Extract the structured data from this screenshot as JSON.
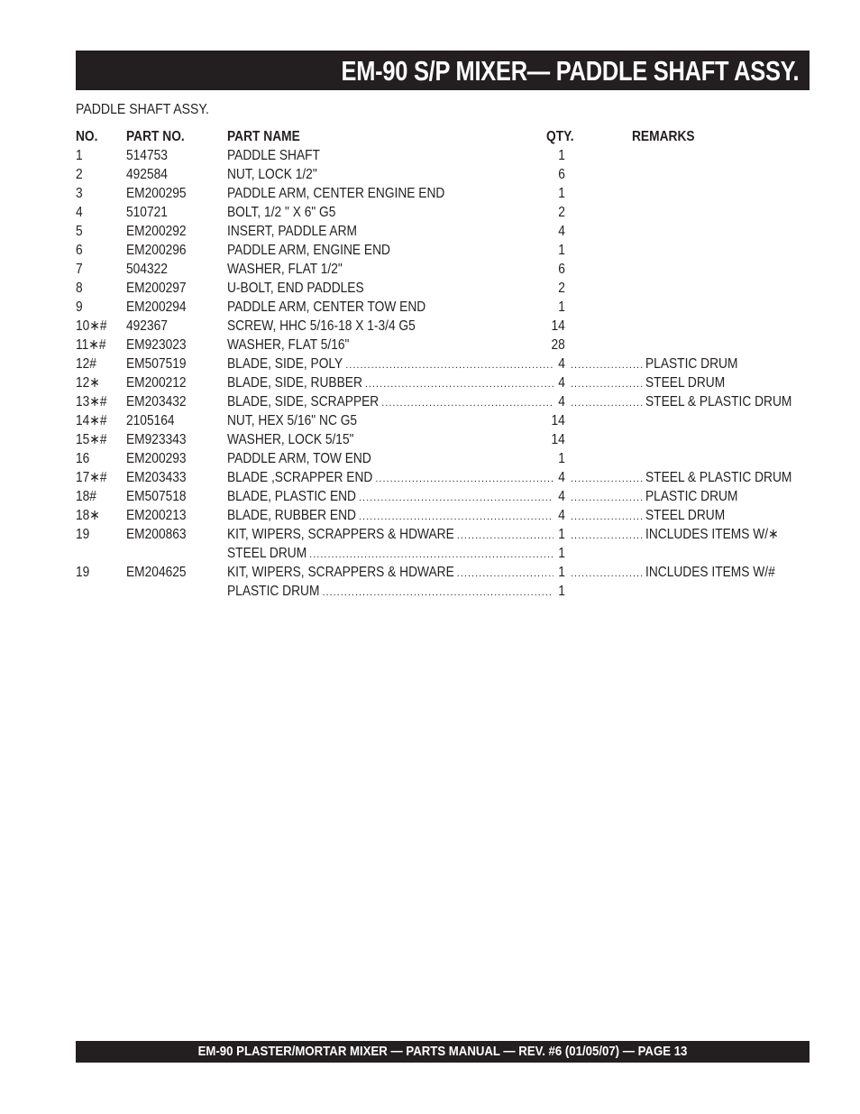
{
  "header": {
    "title": "EM-90 S/P MIXER— PADDLE SHAFT ASSY."
  },
  "section_title": "PADDLE SHAFT ASSY.",
  "table": {
    "columns": {
      "no": "NO.",
      "part_no": "PART NO.",
      "part_name": "PART NAME",
      "qty": "QTY.",
      "remarks": "REMARKS"
    },
    "rows": [
      {
        "no": "1",
        "part_no": "514753",
        "part_name": "PADDLE SHAFT",
        "qty": "1",
        "remarks": ""
      },
      {
        "no": "2",
        "part_no": "492584",
        "part_name": "NUT, LOCK 1/2\"",
        "qty": "6",
        "remarks": ""
      },
      {
        "no": "3",
        "part_no": "EM200295",
        "part_name": "PADDLE ARM, CENTER ENGINE END",
        "qty": "1",
        "remarks": ""
      },
      {
        "no": "4",
        "part_no": "510721",
        "part_name": "BOLT, 1/2 \" X 6\" G5",
        "qty": "2",
        "remarks": ""
      },
      {
        "no": "5",
        "part_no": "EM200292",
        "part_name": "INSERT, PADDLE ARM",
        "qty": "4",
        "remarks": ""
      },
      {
        "no": "6",
        "part_no": "EM200296",
        "part_name": "PADDLE ARM, ENGINE END",
        "qty": "1",
        "remarks": ""
      },
      {
        "no": "7",
        "part_no": "504322",
        "part_name": "WASHER, FLAT 1/2\"",
        "qty": "6",
        "remarks": ""
      },
      {
        "no": "8",
        "part_no": "EM200297",
        "part_name": "U-BOLT, END PADDLES",
        "qty": "2",
        "remarks": ""
      },
      {
        "no": "9",
        "part_no": "EM200294",
        "part_name": "PADDLE ARM, CENTER TOW END",
        "qty": "1",
        "remarks": ""
      },
      {
        "no": "10∗#",
        "part_no": "492367",
        "part_name": "SCREW, HHC 5/16-18 X 1-3/4 G5",
        "qty": "14",
        "remarks": ""
      },
      {
        "no": "11∗#",
        "part_no": "EM923023",
        "part_name": "WASHER, FLAT 5/16\"",
        "qty": "28",
        "remarks": ""
      },
      {
        "no": "12#",
        "part_no": "EM507519",
        "part_name": "BLADE, SIDE, POLY",
        "qty": "4",
        "remarks": "PLASTIC DRUM",
        "leader": true
      },
      {
        "no": "12∗",
        "part_no": "EM200212",
        "part_name": "BLADE, SIDE, RUBBER",
        "qty": "4",
        "remarks": "STEEL DRUM",
        "leader": true
      },
      {
        "no": "13∗#",
        "part_no": "EM203432",
        "part_name": "BLADE, SIDE, SCRAPPER",
        "qty": "4",
        "remarks": "STEEL & PLASTIC DRUM",
        "leader": true
      },
      {
        "no": "14∗#",
        "part_no": "2105164",
        "part_name": "NUT, HEX 5/16\" NC G5",
        "qty": "14",
        "remarks": ""
      },
      {
        "no": "15∗#",
        "part_no": "EM923343",
        "part_name": "WASHER, LOCK 5/15\"",
        "qty": "14",
        "remarks": ""
      },
      {
        "no": "16",
        "part_no": "EM200293",
        "part_name": "PADDLE ARM, TOW END",
        "qty": "1",
        "remarks": ""
      },
      {
        "no": "17∗#",
        "part_no": "EM203433",
        "part_name": "BLADE ,SCRAPPER END",
        "qty": "4",
        "remarks": "STEEL & PLASTIC DRUM",
        "leader": true
      },
      {
        "no": "18#",
        "part_no": "EM507518",
        "part_name": "BLADE, PLASTIC END",
        "qty": "4",
        "remarks": "PLASTIC DRUM",
        "leader": true
      },
      {
        "no": "18∗",
        "part_no": "EM200213",
        "part_name": "BLADE, RUBBER END",
        "qty": "4",
        "remarks": "STEEL DRUM",
        "leader": true
      },
      {
        "no": "19",
        "part_no": "EM200863",
        "part_name": "KIT, WIPERS, SCRAPPERS & HDWARE",
        "qty": "1",
        "remarks": "INCLUDES ITEMS W/∗",
        "leader": true
      },
      {
        "no": "",
        "part_no": "",
        "part_name": "STEEL DRUM",
        "qty": "1",
        "remarks": "",
        "leader": true
      },
      {
        "no": "19",
        "part_no": "EM204625",
        "part_name": "KIT, WIPERS, SCRAPPERS & HDWARE",
        "qty": "1",
        "remarks": "INCLUDES ITEMS W/#",
        "leader": true
      },
      {
        "no": "",
        "part_no": "",
        "part_name": "PLASTIC DRUM",
        "qty": "1",
        "remarks": "",
        "leader": true
      }
    ]
  },
  "footer": {
    "text": "EM-90 PLASTER/MORTAR  MIXER —  PARTS MANUAL — REV. #6  (01/05/07) — PAGE 13"
  },
  "colors": {
    "bar": "#231f20",
    "text": "#231f20"
  }
}
